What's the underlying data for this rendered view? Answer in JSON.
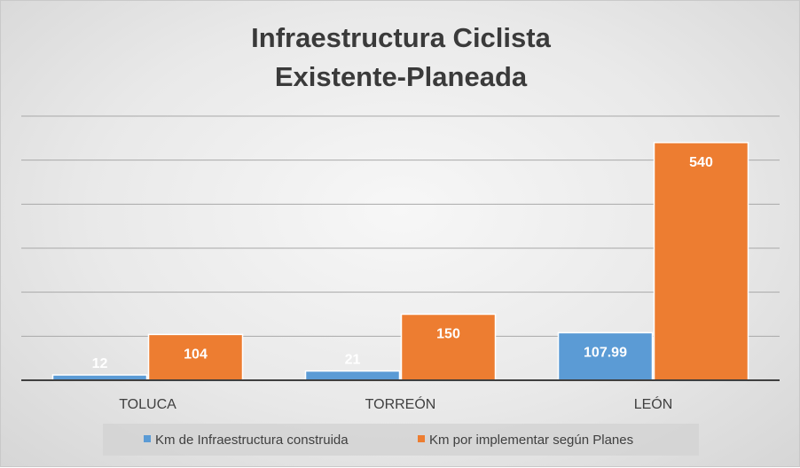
{
  "chart_data": {
    "type": "bar",
    "title_lines": [
      "Infraestructura Ciclista",
      "Existente-Planeada"
    ],
    "categories": [
      "TOLUCA",
      "TORREÓN",
      "LEÓN"
    ],
    "series": [
      {
        "name": "Km de Infraestructura construida",
        "values": [
          12,
          21,
          107.99
        ],
        "labels": [
          "12",
          "21",
          "107.99"
        ],
        "color": "#5b9bd5"
      },
      {
        "name": "Km por implementar según Planes",
        "values": [
          104,
          150,
          540
        ],
        "labels": [
          "104",
          "150",
          "540"
        ],
        "color": "#ed7d31"
      }
    ],
    "ylim": [
      0,
      600
    ],
    "y_tick_step": 100,
    "grid": true,
    "legend_position": "bottom",
    "xlabel": "",
    "ylabel": ""
  }
}
